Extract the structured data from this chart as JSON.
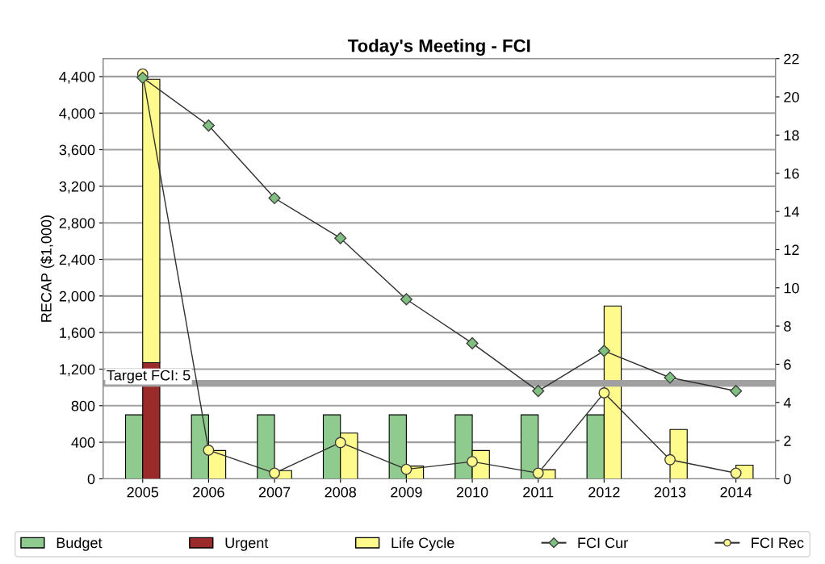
{
  "chart_data": {
    "type": "bar",
    "title": "Today's Meeting - FCI",
    "ylabel": "RECAP ($1,000)",
    "categories": [
      "2005",
      "2006",
      "2007",
      "2008",
      "2009",
      "2010",
      "2011",
      "2012",
      "2013",
      "2014"
    ],
    "series": [
      {
        "name": "Budget",
        "color": "#8fca8f",
        "values": [
          700,
          700,
          700,
          700,
          700,
          700,
          700,
          700,
          0,
          0
        ]
      },
      {
        "name": "Urgent",
        "color": "#9b2a2a",
        "values": [
          1270,
          0,
          0,
          0,
          0,
          0,
          0,
          0,
          0,
          0
        ]
      },
      {
        "name": "Life Cycle",
        "color": "#fefb8c",
        "values": [
          3100,
          310,
          90,
          500,
          140,
          310,
          100,
          1890,
          540,
          150
        ],
        "base": [
          1270,
          0,
          0,
          0,
          0,
          0,
          0,
          0,
          0,
          0
        ]
      },
      {
        "name": "FCI Cur",
        "type": "line",
        "axis": "y2",
        "marker": "diamond",
        "color": "#7fbf7f",
        "values": [
          21.0,
          18.5,
          14.7,
          12.6,
          9.4,
          7.1,
          4.6,
          6.7,
          5.3,
          4.6
        ]
      },
      {
        "name": "FCI Rec",
        "type": "line",
        "axis": "y2",
        "marker": "circle",
        "color": "#fefb8c",
        "values": [
          21.2,
          1.5,
          0.3,
          1.9,
          0.5,
          0.9,
          0.3,
          4.5,
          1.0,
          0.3
        ]
      }
    ],
    "ylim": [
      0,
      4596
    ],
    "yticks": [
      0,
      {
        "value": 400,
        "label": "400"
      },
      {
        "value": 800,
        "label": "800"
      },
      {
        "value": 1200,
        "label": "1,200"
      },
      {
        "value": 1600,
        "label": "1,600"
      },
      {
        "value": 2000,
        "label": "2,000"
      },
      {
        "value": 2400,
        "label": "2,400"
      },
      {
        "value": 2800,
        "label": "2,800"
      },
      {
        "value": 3200,
        "label": "3,200"
      },
      {
        "value": 3600,
        "label": "3,600"
      },
      {
        "value": 4000,
        "label": "4,000"
      },
      {
        "value": 4400,
        "label": "4,400"
      }
    ],
    "y2lim": [
      0,
      22
    ],
    "y2ticks": [
      0,
      2,
      4,
      6,
      8,
      10,
      12,
      14,
      16,
      18,
      20,
      22
    ],
    "ref_lines": [
      {
        "axis": "y2",
        "value": 5,
        "label": "Target FCI: 5",
        "color": "#a0a0a0"
      }
    ],
    "grid": "y",
    "legend": "bottom"
  }
}
